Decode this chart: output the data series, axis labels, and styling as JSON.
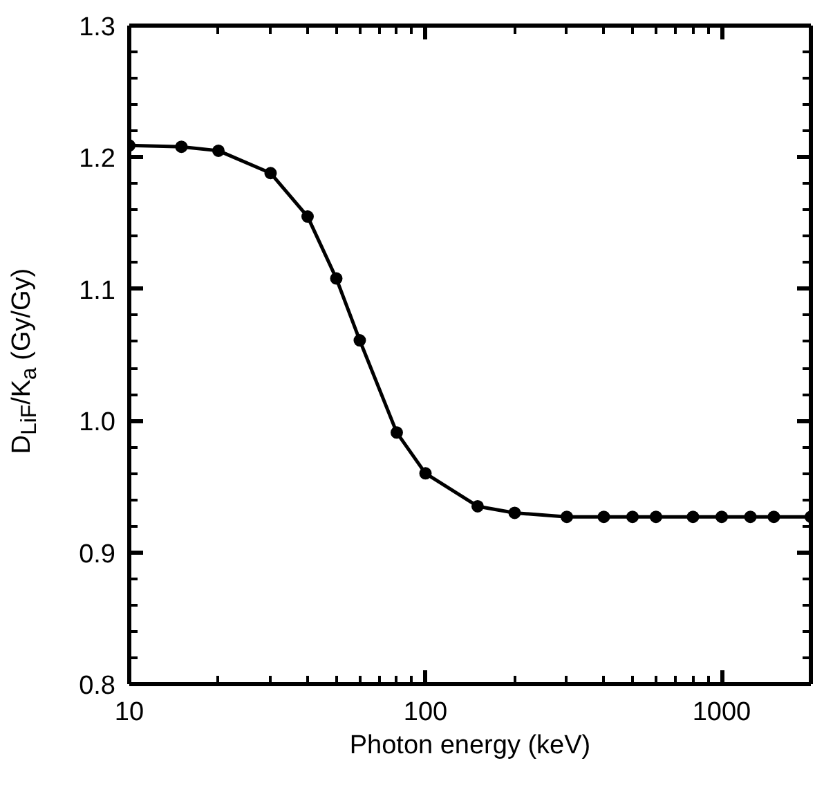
{
  "chart_data": {
    "type": "line",
    "xlabel": "Photon energy (keV)",
    "ylabel": "D$_{LiF}$/K$_{a}$ (Gy/Gy)",
    "x": [
      10,
      15,
      20,
      30,
      40,
      50,
      60,
      80,
      100,
      150,
      200,
      300,
      400,
      500,
      600,
      800,
      1000,
      1250,
      1500,
      2000
    ],
    "series": [
      {
        "color": "#000000",
        "values": [
          1.209,
          1.208,
          1.205,
          1.188,
          1.155,
          1.108,
          1.061,
          0.991,
          0.96,
          0.935,
          0.93,
          0.927,
          0.927,
          0.927,
          0.927,
          0.927,
          0.927,
          0.927,
          0.927,
          0.927
        ]
      }
    ],
    "log": "x",
    "xlim": [
      10,
      2000
    ],
    "xticks": [
      10,
      100,
      1000
    ],
    "ylim": [
      0.8,
      1.3
    ],
    "yticks": [
      0.8,
      0.9,
      {
        "value": 1,
        "label": "1.0"
      },
      1.1,
      1.2,
      1.3
    ],
    "marker": "circle",
    "line_style": "solid",
    "grid": false
  }
}
